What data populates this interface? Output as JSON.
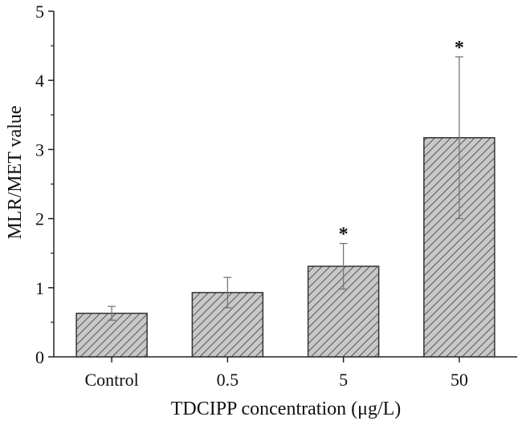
{
  "chart_data": {
    "type": "bar",
    "title": "",
    "xlabel": "TDCIPP concentration (μg/L)",
    "ylabel": "MLR/MET value",
    "categories": [
      "Control",
      "0.5",
      "5",
      "50"
    ],
    "values": [
      0.63,
      0.93,
      1.31,
      3.17
    ],
    "error": [
      0.1,
      0.22,
      0.33,
      1.17
    ],
    "significance": [
      "",
      "",
      "*",
      "*"
    ],
    "ylim": [
      0,
      5
    ],
    "yticks": [
      0,
      1,
      2,
      3,
      4,
      5
    ],
    "grid": false,
    "bar_fill": "#c8c8c8",
    "hatch_color": "#555555",
    "edge_color": "#333333",
    "error_bar_color": "#777777"
  }
}
